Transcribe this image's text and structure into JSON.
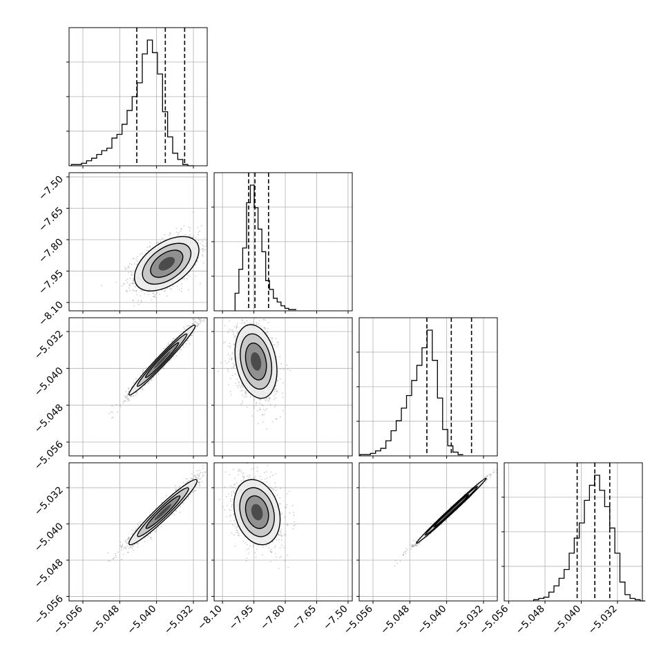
{
  "chart_data": {
    "type": "corner",
    "grid": true,
    "n_params": 4,
    "parameter_ranges": [
      [
        -5.059,
        -5.029
      ],
      [
        -8.14,
        -7.48
      ],
      [
        -5.059,
        -5.029
      ],
      [
        -5.057,
        -5.0265
      ]
    ],
    "diag_x_ticks": [
      {
        "values": [
          -5.056,
          -5.048,
          -5.04,
          -5.032
        ],
        "labels": [
          "−5.056",
          "−5.048",
          "−5.040",
          "−5.032"
        ]
      },
      {
        "values": [
          -8.1,
          -7.95,
          -7.8,
          -7.65,
          -7.5
        ],
        "labels": [
          "−8.10",
          "−7.95",
          "−7.80",
          "−7.65",
          "−7.50"
        ]
      },
      {
        "values": [
          -5.056,
          -5.048,
          -5.04,
          -5.032
        ],
        "labels": [
          "−5.056",
          "−5.048",
          "−5.040",
          "−5.032"
        ]
      },
      {
        "values": [
          -5.056,
          -5.048,
          -5.04,
          -5.032
        ],
        "labels": [
          "−5.056",
          "−5.048",
          "−5.040",
          "−5.032"
        ]
      }
    ],
    "row_y_ticks": [
      null,
      {
        "values": [
          -7.5,
          -7.65,
          -7.8,
          -7.95,
          -8.1
        ],
        "labels": [
          "−7.50",
          "−7.65",
          "−7.80",
          "−7.95",
          "−8.10"
        ]
      },
      {
        "values": [
          -5.032,
          -5.04,
          -5.048,
          -5.056
        ],
        "labels": [
          "−5.032",
          "−5.040",
          "−5.048",
          "−5.056"
        ]
      },
      {
        "values": [
          -5.032,
          -5.04,
          -5.048,
          -5.056
        ],
        "labels": [
          "−5.032",
          "−5.040",
          "−5.048",
          "−5.056"
        ]
      }
    ],
    "quantiles": [
      [
        -5.0443,
        -5.0381,
        -5.0339
      ],
      [
        -7.975,
        -7.945,
        -7.88
      ],
      [
        -5.0443,
        -5.039,
        -5.0346
      ],
      [
        -5.0409,
        -5.037,
        -5.0337
      ]
    ],
    "histograms": [
      {
        "edges_start": -5.0585,
        "bin_width": 0.0011,
        "counts": [
          1,
          1,
          2,
          4,
          6,
          9,
          12,
          14,
          22,
          25,
          33,
          44,
          55,
          66,
          89,
          100,
          90,
          73,
          43,
          23,
          10,
          5,
          1,
          0
        ]
      },
      {
        "edges_start": -8.04,
        "bin_width": 0.0183,
        "counts": [
          14,
          33,
          50,
          86,
          100,
          82,
          65,
          47,
          24,
          17,
          10,
          7,
          4,
          2,
          1,
          1
        ]
      },
      {
        "edges_start": -5.0588,
        "bin_width": 0.00112,
        "counts": [
          1,
          1,
          2,
          4,
          6,
          12,
          20,
          28,
          38,
          48,
          60,
          72,
          86,
          100,
          76,
          46,
          21,
          8,
          3,
          1
        ]
      },
      {
        "edges_start": -5.0505,
        "bin_width": 0.00112,
        "counts": [
          1,
          2,
          3,
          7,
          12,
          18,
          25,
          38,
          50,
          62,
          80,
          92,
          100,
          88,
          75,
          58,
          38,
          15,
          5,
          2,
          1,
          0
        ]
      }
    ],
    "pair_plots": [
      {
        "row": 1,
        "col": 0,
        "mean": [
          -5.0378,
          -7.915
        ],
        "sd": [
          0.0035,
          0.065
        ],
        "rho": 0.5
      },
      {
        "row": 2,
        "col": 0,
        "mean": [
          -5.0388,
          -5.0382
        ],
        "sd": [
          0.0036,
          0.0038
        ],
        "rho": 0.98
      },
      {
        "row": 2,
        "col": 1,
        "mean": [
          -7.94,
          -5.0385
        ],
        "sd": [
          0.05,
          0.004
        ],
        "rho": -0.25
      },
      {
        "row": 3,
        "col": 0,
        "mean": [
          -5.0386,
          -5.0374
        ],
        "sd": [
          0.0037,
          0.0036
        ],
        "rho": 0.96
      },
      {
        "row": 3,
        "col": 1,
        "mean": [
          -7.935,
          -5.0374
        ],
        "sd": [
          0.055,
          0.0036
        ],
        "rho": -0.22
      },
      {
        "row": 3,
        "col": 2,
        "mean": [
          -5.039,
          -5.0371
        ],
        "sd": [
          0.0038,
          0.0036
        ],
        "rho": 0.995
      }
    ],
    "density_levels": [
      0.118,
      0.393,
      0.675,
      0.865
    ]
  }
}
